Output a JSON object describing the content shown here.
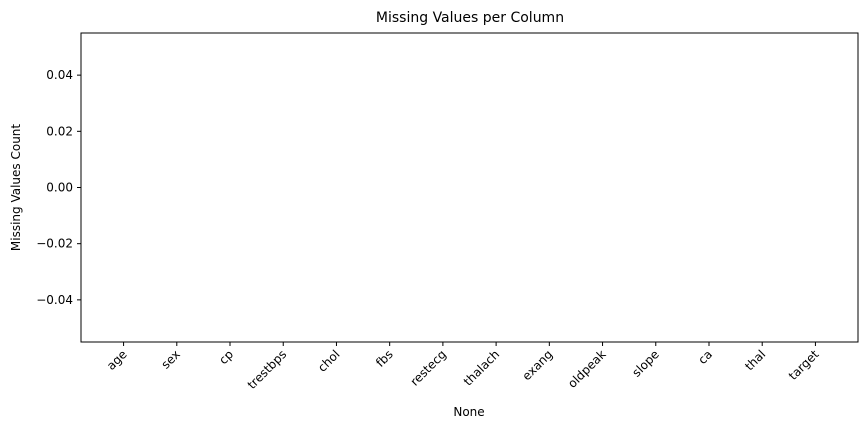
{
  "chart_data": {
    "type": "bar",
    "title": "Missing Values per Column",
    "xlabel": "None",
    "ylabel": "Missing Values Count",
    "categories": [
      "age",
      "sex",
      "cp",
      "trestbps",
      "chol",
      "fbs",
      "restecg",
      "thalach",
      "exang",
      "oldpeak",
      "slope",
      "ca",
      "thal",
      "target"
    ],
    "values": [
      0,
      0,
      0,
      0,
      0,
      0,
      0,
      0,
      0,
      0,
      0,
      0,
      0,
      0
    ],
    "ylim": [
      -0.055,
      0.055
    ],
    "yticks": [
      -0.04,
      -0.02,
      0.0,
      0.02,
      0.04
    ],
    "ytick_labels": [
      "−0.04",
      "−0.02",
      "0.00",
      "0.02",
      "0.04"
    ],
    "xtick_rotation": 45,
    "grid": false,
    "legend": "none"
  }
}
